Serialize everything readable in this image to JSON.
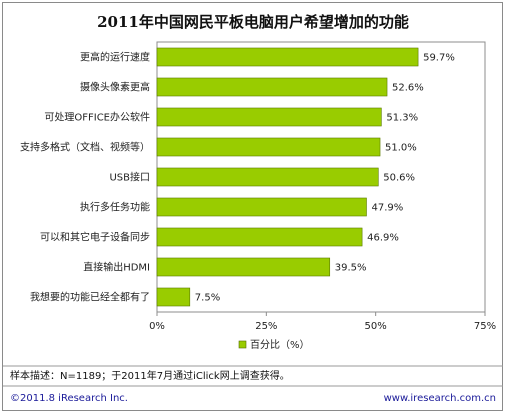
{
  "chart_data": {
    "type": "bar",
    "orientation": "horizontal",
    "title": "2011年中国网民平板电脑用户希望增加的功能",
    "categories": [
      "更高的运行速度",
      "摄像头像素更高",
      "可处理OFFICE办公软件",
      "支持多格式（文档、视频等）",
      "USB接口",
      "执行多任务功能",
      "可以和其它电子设备同步",
      "直接输出HDMI",
      "我想要的功能已经全都有了"
    ],
    "series": [
      {
        "name": "百分比（%）",
        "values": [
          59.7,
          52.6,
          51.3,
          51.0,
          50.6,
          47.9,
          46.9,
          39.5,
          7.5
        ],
        "labels": [
          "59.7%",
          "52.6%",
          "51.3%",
          "51.0%",
          "50.6%",
          "47.9%",
          "46.9%",
          "39.5%",
          "7.5%"
        ]
      }
    ],
    "xlim": [
      0,
      75
    ],
    "ticks": [
      0,
      25,
      50,
      75
    ],
    "tick_labels": [
      "0%",
      "25%",
      "50%",
      "75%"
    ],
    "grid": false,
    "legend": "bottom",
    "bar_color": "#99cc00"
  },
  "note": "样本描述：N=1189；于2011年7月通过iClick网上调查获得。",
  "footer": {
    "copyright": "©2011.8 iResearch Inc.",
    "website": "www.iresearch.com.cn"
  }
}
